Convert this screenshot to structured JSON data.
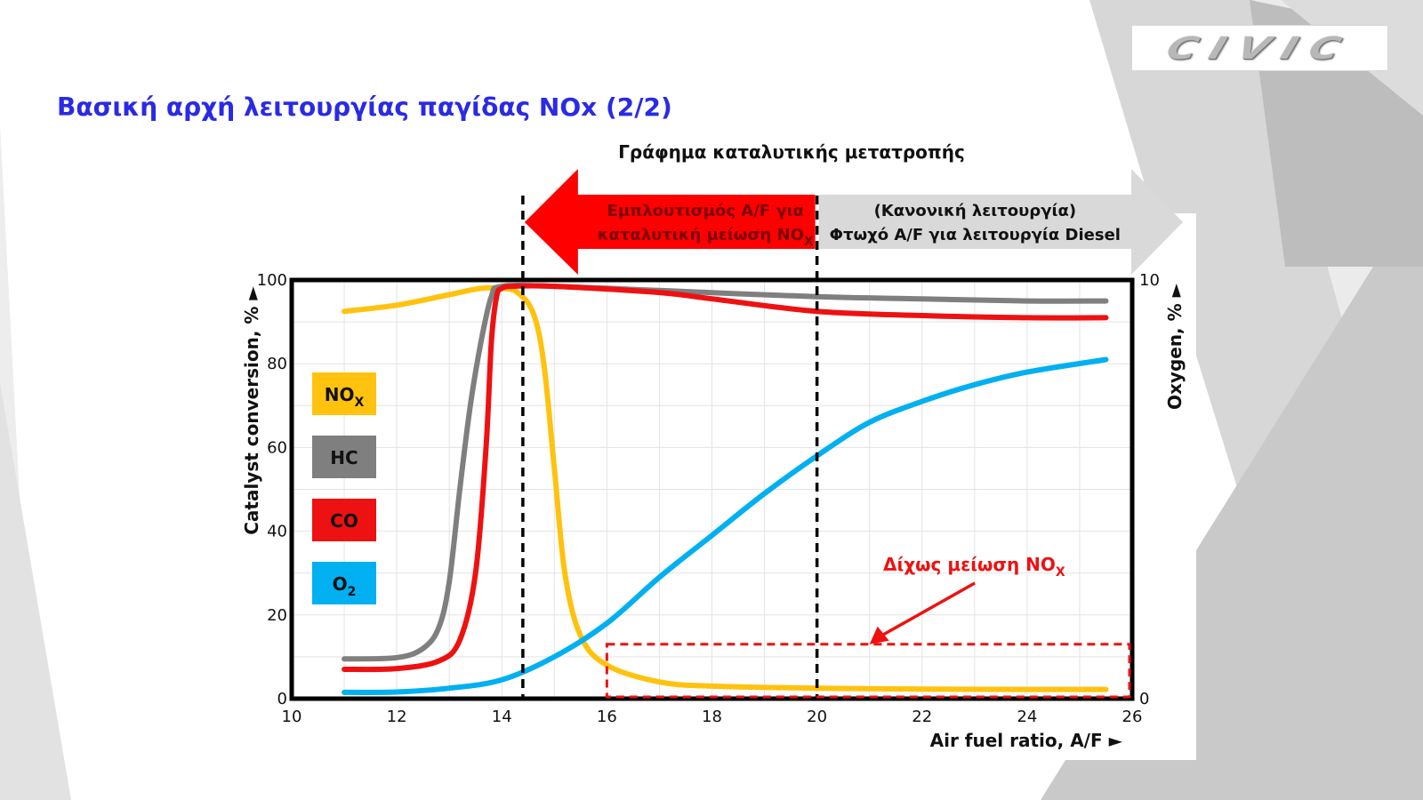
{
  "slide": {
    "title": "Βασική αρχή λειτουργίας παγίδας NOx (2/2)",
    "logo_text": "CIVIC"
  },
  "colors": {
    "title": "#2a2ae6",
    "nox": "#ffc20e",
    "hc": "#7f7f7f",
    "co": "#ee1111",
    "o2": "#00b0f0",
    "rich_arrow": "#ff0000",
    "lean_arrow": "#d9d9d9",
    "annotation": "#ee1111"
  },
  "chart_data": {
    "type": "line",
    "title": "Γράφημα καταλυτικής μετατροπής",
    "xlabel": "Air fuel ratio, A/F ►",
    "ylabel": "Catalyst conversion, % ►",
    "y2label": "Oxygen, % ►",
    "xlim": [
      10,
      26
    ],
    "ylim": [
      0,
      100
    ],
    "y2lim": [
      0,
      10
    ],
    "xticks": [
      "10",
      "12",
      "14",
      "16",
      "18",
      "20",
      "22",
      "24",
      "26"
    ],
    "yticks": [
      "0",
      "20",
      "40",
      "60",
      "80",
      "100"
    ],
    "y2ticks": [
      "0",
      "10"
    ],
    "grid": true,
    "legend_position": "left inside",
    "series": [
      {
        "name": "NOX",
        "key": "nox",
        "axis": "left",
        "x": [
          11,
          12,
          13,
          13.6,
          14,
          14.3,
          14.6,
          14.8,
          15,
          15.2,
          15.5,
          16,
          17,
          18,
          20,
          22,
          24,
          25.5
        ],
        "y": [
          92.5,
          94,
          96.5,
          98,
          98,
          97,
          92,
          80,
          55,
          30,
          15,
          8,
          4,
          3,
          2.5,
          2.3,
          2.2,
          2.2
        ]
      },
      {
        "name": "HC",
        "key": "hc",
        "axis": "left",
        "x": [
          11,
          12,
          12.5,
          12.8,
          13,
          13.2,
          13.4,
          13.6,
          13.8,
          14,
          15,
          17,
          20,
          22,
          24,
          25.5
        ],
        "y": [
          9.5,
          9.8,
          12,
          17,
          28,
          50,
          70,
          85,
          96,
          98.5,
          98.5,
          97.5,
          96,
          95.5,
          95,
          95
        ]
      },
      {
        "name": "CO",
        "key": "co",
        "axis": "left",
        "x": [
          11,
          12,
          12.8,
          13.2,
          13.5,
          13.7,
          13.8,
          13.9,
          14,
          14.2,
          15,
          17,
          18,
          20,
          22,
          24,
          25.5
        ],
        "y": [
          7,
          7.2,
          9,
          14,
          30,
          60,
          85,
          96,
          98,
          98.5,
          98.5,
          97,
          95.5,
          92.5,
          91.5,
          91,
          91
        ]
      },
      {
        "name": "O2",
        "key": "o2",
        "axis": "right",
        "x": [
          11,
          12,
          13,
          14,
          15,
          16,
          17,
          18,
          19,
          20,
          21,
          22,
          23,
          24,
          25.5
        ],
        "y": [
          0.15,
          0.16,
          0.25,
          0.45,
          1.0,
          1.8,
          2.9,
          3.9,
          4.9,
          5.8,
          6.6,
          7.1,
          7.5,
          7.8,
          8.1
        ]
      }
    ],
    "legend": [
      {
        "main": "NO",
        "sub": "X",
        "key": "nox"
      },
      {
        "main": "HC",
        "sub": "",
        "key": "hc"
      },
      {
        "main": "CO",
        "sub": "",
        "key": "co"
      },
      {
        "main": "O",
        "sub": "2",
        "key": "o2"
      }
    ],
    "vlines": [
      14.4,
      20
    ],
    "rich_arrow": {
      "line1": "Εμπλουτισμός A/F για",
      "line2_main": "καταλυτική μείωση NO",
      "line2_sub": "X",
      "x_from": 14.4,
      "x_to": 20
    },
    "lean_arrow": {
      "line1": "(Κανονική λειτουργία)",
      "line2": "Φτωχό A/F για λειτουργία Diesel",
      "x_from": 20,
      "x_to": 26
    },
    "annotation": {
      "text_main": "Δίχως μείωση NO",
      "text_sub": "X",
      "box": {
        "x_from": 16,
        "x_to": 26,
        "y_from": 0,
        "y_to": 13
      },
      "arrow_to": {
        "x": 21,
        "y": 13
      }
    }
  }
}
